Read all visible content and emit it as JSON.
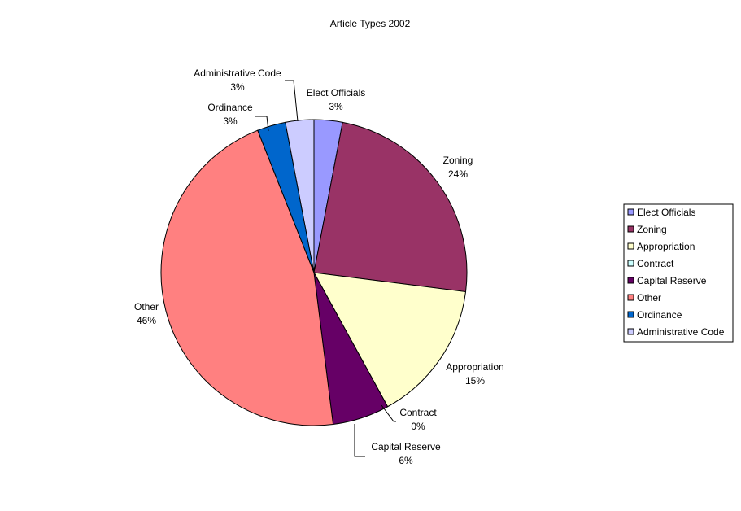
{
  "chart_data": {
    "type": "pie",
    "title": "Article Types 2002",
    "slices": [
      {
        "label": "Elect Officials",
        "value": 3,
        "percent_label": "3%",
        "color": "#9999ff"
      },
      {
        "label": "Zoning",
        "value": 24,
        "percent_label": "24%",
        "color": "#993366"
      },
      {
        "label": "Appropriation",
        "value": 15,
        "percent_label": "15%",
        "color": "#ffffcc"
      },
      {
        "label": "Contract",
        "value": 0,
        "percent_label": "0%",
        "color": "#ccffff"
      },
      {
        "label": "Capital Reserve",
        "value": 6,
        "percent_label": "6%",
        "color": "#660066"
      },
      {
        "label": "Other",
        "value": 46,
        "percent_label": "46%",
        "color": "#ff8080"
      },
      {
        "label": "Ordinance",
        "value": 3,
        "percent_label": "3%",
        "color": "#0066cc"
      },
      {
        "label": "Administrative Code",
        "value": 3,
        "percent_label": "3%",
        "color": "#ccccff"
      }
    ],
    "legend_position": "right"
  }
}
